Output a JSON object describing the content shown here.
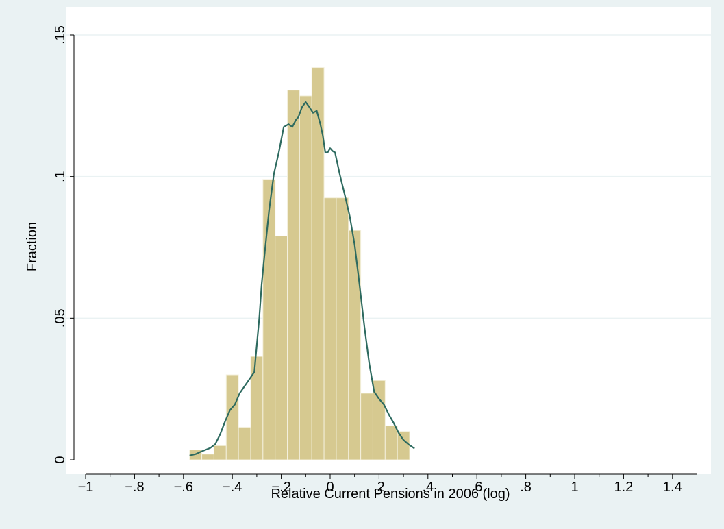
{
  "chart_data": {
    "type": "bar",
    "xlabel": "Relative Current Pensions in 2006 (log)",
    "ylabel": "Fraction",
    "xlim": [
      -1.05,
      1.55
    ],
    "ylim": [
      0,
      0.15
    ],
    "x_ticks": [
      -1,
      -0.8,
      -0.6,
      -0.4,
      -0.2,
      0,
      0.2,
      0.4,
      0.6,
      0.8,
      1,
      1.2,
      1.4
    ],
    "x_tick_labels": [
      "−1",
      "−.8",
      "−.6",
      "−.4",
      "−.2",
      "0",
      ".2",
      ".4",
      ".6",
      ".8",
      "1",
      "1.2",
      "1.4"
    ],
    "x_minor_ticks": [
      -0.9,
      -0.7,
      -0.5,
      -0.3,
      -0.1,
      0.1,
      0.3,
      0.5,
      0.7,
      0.9,
      1.1,
      1.3,
      1.5
    ],
    "y_ticks": [
      0,
      0.05,
      0.1,
      0.15
    ],
    "y_tick_labels": [
      "0",
      ".05",
      ".1",
      ".15"
    ],
    "grid": true,
    "bin_width": 0.05,
    "bins": [
      {
        "x0": -0.575,
        "value": 0.0035
      },
      {
        "x0": -0.525,
        "value": 0.002
      },
      {
        "x0": -0.475,
        "value": 0.005
      },
      {
        "x0": -0.425,
        "value": 0.03
      },
      {
        "x0": -0.375,
        "value": 0.0115
      },
      {
        "x0": -0.325,
        "value": 0.0365
      },
      {
        "x0": -0.275,
        "value": 0.099
      },
      {
        "x0": -0.225,
        "value": 0.079
      },
      {
        "x0": -0.175,
        "value": 0.1305
      },
      {
        "x0": -0.125,
        "value": 0.1285
      },
      {
        "x0": -0.075,
        "value": 0.1385
      },
      {
        "x0": -0.025,
        "value": 0.0925
      },
      {
        "x0": 0.025,
        "value": 0.0925
      },
      {
        "x0": 0.075,
        "value": 0.081
      },
      {
        "x0": 0.125,
        "value": 0.0235
      },
      {
        "x0": 0.175,
        "value": 0.028
      },
      {
        "x0": 0.225,
        "value": 0.012
      },
      {
        "x0": 0.275,
        "value": 0.01
      }
    ],
    "density_curve": {
      "x": [
        -0.575,
        -0.55,
        -0.53,
        -0.51,
        -0.49,
        -0.47,
        -0.45,
        -0.43,
        -0.41,
        -0.39,
        -0.37,
        -0.35,
        -0.33,
        -0.31,
        -0.29,
        -0.28,
        -0.27,
        -0.25,
        -0.23,
        -0.21,
        -0.19,
        -0.17,
        -0.155,
        -0.14,
        -0.13,
        -0.115,
        -0.1,
        -0.085,
        -0.07,
        -0.055,
        -0.04,
        -0.03,
        -0.02,
        -0.01,
        0,
        0.01,
        0.02,
        0.04,
        0.06,
        0.08,
        0.1,
        0.12,
        0.14,
        0.16,
        0.18,
        0.2,
        0.22,
        0.24,
        0.26,
        0.28,
        0.3,
        0.32,
        0.345
      ],
      "y": [
        0.0015,
        0.002,
        0.0028,
        0.0035,
        0.0042,
        0.0055,
        0.009,
        0.0135,
        0.0175,
        0.0195,
        0.0235,
        0.026,
        0.0285,
        0.031,
        0.05,
        0.062,
        0.071,
        0.088,
        0.101,
        0.1085,
        0.1175,
        0.1185,
        0.1175,
        0.12,
        0.121,
        0.1245,
        0.1263,
        0.1245,
        0.1225,
        0.1232,
        0.1185,
        0.1145,
        0.1085,
        0.1085,
        0.11,
        0.109,
        0.1085,
        0.1005,
        0.0935,
        0.086,
        0.076,
        0.062,
        0.047,
        0.034,
        0.024,
        0.0215,
        0.0195,
        0.016,
        0.013,
        0.0095,
        0.007,
        0.0055,
        0.004
      ]
    },
    "colors": {
      "bar_fill": "#d6c990",
      "bar_edge": "#f4f0dd",
      "curve": "#2d6a5f",
      "grid": "#eaf2f3",
      "plot_bg": "#ffffff",
      "outer_bg": "#eaf2f3"
    }
  }
}
